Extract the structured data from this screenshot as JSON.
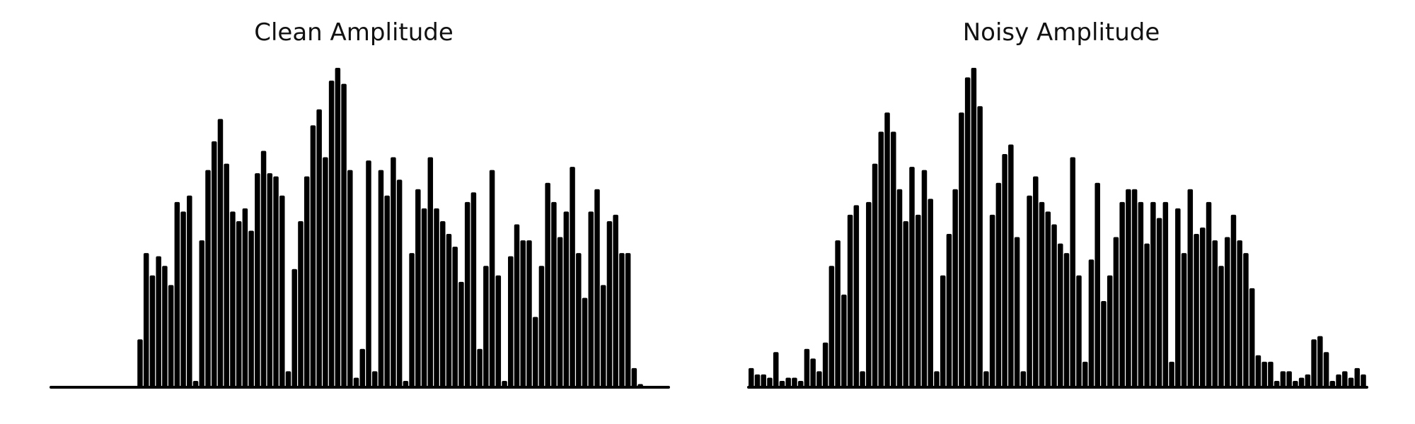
{
  "chart_data": [
    {
      "type": "area",
      "title": "Clean Amplitude",
      "xlabel": "",
      "ylabel": "",
      "axes_visible": false,
      "grid": false,
      "color": "#000000",
      "xlim": [
        0,
        100
      ],
      "ylim": [
        0,
        1
      ],
      "series": [
        {
          "values": [
            0,
            0,
            0,
            0,
            0,
            0,
            0,
            0,
            0,
            0,
            0,
            0,
            0,
            0,
            0.15,
            0.42,
            0.35,
            0.41,
            0.38,
            0.32,
            0.58,
            0.55,
            0.6,
            0.02,
            0.46,
            0.68,
            0.77,
            0.84,
            0.7,
            0.55,
            0.52,
            0.56,
            0.49,
            0.67,
            0.74,
            0.67,
            0.66,
            0.6,
            0.05,
            0.37,
            0.52,
            0.66,
            0.82,
            0.87,
            0.72,
            0.96,
            1.0,
            0.95,
            0.68,
            0.03,
            0.12,
            0.71,
            0.05,
            0.68,
            0.6,
            0.72,
            0.65,
            0.02,
            0.42,
            0.62,
            0.56,
            0.72,
            0.56,
            0.52,
            0.48,
            0.44,
            0.33,
            0.58,
            0.61,
            0.12,
            0.38,
            0.68,
            0.35,
            0.02,
            0.41,
            0.51,
            0.46,
            0.46,
            0.22,
            0.38,
            0.64,
            0.58,
            0.47,
            0.55,
            0.69,
            0.42,
            0.28,
            0.55,
            0.62,
            0.32,
            0.52,
            0.54,
            0.42,
            0.42,
            0.06,
            0.01,
            0,
            0,
            0,
            0
          ]
        }
      ]
    },
    {
      "type": "area",
      "title": "Noisy Amplitude",
      "xlabel": "",
      "ylabel": "",
      "axes_visible": false,
      "grid": false,
      "color": "#000000",
      "xlim": [
        0,
        100
      ],
      "ylim": [
        0,
        1
      ],
      "series": [
        {
          "values": [
            0.06,
            0.04,
            0.04,
            0.03,
            0.11,
            0.02,
            0.03,
            0.03,
            0.02,
            0.12,
            0.09,
            0.05,
            0.14,
            0.38,
            0.46,
            0.29,
            0.54,
            0.57,
            0.05,
            0.58,
            0.7,
            0.8,
            0.86,
            0.8,
            0.62,
            0.52,
            0.69,
            0.54,
            0.68,
            0.59,
            0.05,
            0.35,
            0.48,
            0.62,
            0.86,
            0.97,
            1.0,
            0.88,
            0.05,
            0.54,
            0.64,
            0.73,
            0.76,
            0.47,
            0.05,
            0.6,
            0.66,
            0.58,
            0.55,
            0.51,
            0.45,
            0.42,
            0.72,
            0.35,
            0.08,
            0.4,
            0.64,
            0.27,
            0.35,
            0.47,
            0.58,
            0.62,
            0.62,
            0.58,
            0.45,
            0.58,
            0.53,
            0.58,
            0.08,
            0.56,
            0.42,
            0.62,
            0.48,
            0.5,
            0.58,
            0.46,
            0.38,
            0.47,
            0.54,
            0.46,
            0.42,
            0.31,
            0.1,
            0.08,
            0.08,
            0.02,
            0.05,
            0.05,
            0.02,
            0.03,
            0.04,
            0.15,
            0.16,
            0.11,
            0.02,
            0.04,
            0.05,
            0.03,
            0.06,
            0.04
          ]
        }
      ]
    }
  ]
}
